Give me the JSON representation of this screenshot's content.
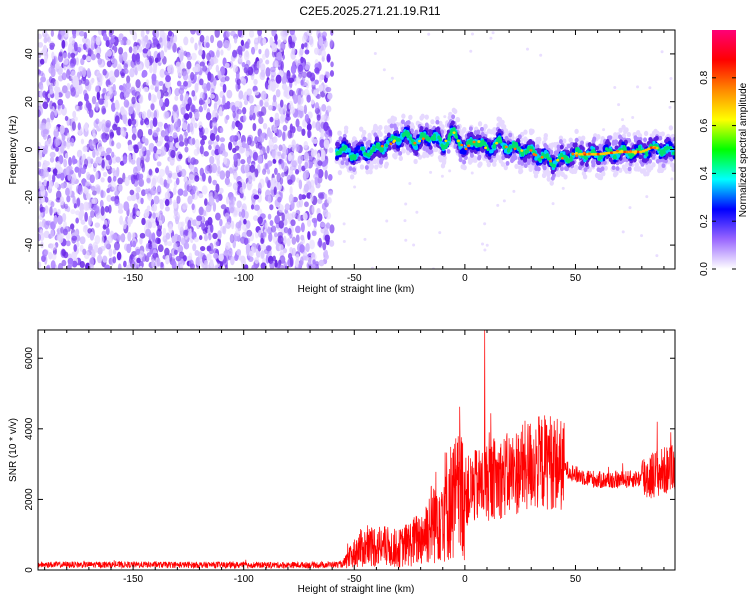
{
  "title": "C2E5.2025.271.21.19.R11",
  "chart_data": [
    {
      "type": "heatmap",
      "xlabel": "Height of straight line (km)",
      "ylabel": "Frequency (Hz)",
      "xlim": [
        -193,
        95
      ],
      "ylim": [
        -50,
        50
      ],
      "x_ticks": [
        -150,
        -100,
        -50,
        0,
        50
      ],
      "y_ticks": [
        -40,
        -20,
        0,
        20,
        40
      ],
      "noise_region_x": [
        -193,
        -60
      ],
      "ridge": [
        {
          "x": -60,
          "y": 1
        },
        {
          "x": -50,
          "y": -2
        },
        {
          "x": -40,
          "y": 0
        },
        {
          "x": -35,
          "y": 2
        },
        {
          "x": -28,
          "y": 6
        },
        {
          "x": -22,
          "y": 3
        },
        {
          "x": -15,
          "y": 6
        },
        {
          "x": -10,
          "y": 2
        },
        {
          "x": -5,
          "y": 7
        },
        {
          "x": 0,
          "y": 0
        },
        {
          "x": 5,
          "y": 4
        },
        {
          "x": 10,
          "y": 0
        },
        {
          "x": 15,
          "y": 3
        },
        {
          "x": 20,
          "y": 1
        },
        {
          "x": 30,
          "y": -1
        },
        {
          "x": 40,
          "y": -5
        },
        {
          "x": 50,
          "y": -2
        },
        {
          "x": 60,
          "y": -2
        },
        {
          "x": 70,
          "y": -1
        },
        {
          "x": 80,
          "y": -1
        },
        {
          "x": 85,
          "y": 1
        },
        {
          "x": 90,
          "y": 0
        },
        {
          "x": 95,
          "y": -1
        }
      ],
      "colorbar": {
        "label": "Normalized spectral amplitude",
        "range": [
          0,
          1
        ],
        "ticks": [
          "0.0",
          "0.2",
          "0.4",
          "0.6",
          "0.8"
        ],
        "colors": [
          "#ffffff",
          "#9966ff",
          "#0000ff",
          "#00ffff",
          "#00ff00",
          "#ffff00",
          "#ff8800",
          "#ff0000",
          "#ff0077"
        ]
      }
    },
    {
      "type": "line",
      "xlabel": "Height of straight line (km)",
      "ylabel": "SNR (10 * v/v)",
      "xlim": [
        -193,
        95
      ],
      "ylim": [
        0,
        6800
      ],
      "x_ticks": [
        -150,
        -100,
        -50,
        0,
        50
      ],
      "y_ticks": [
        0,
        2000,
        4000,
        6000
      ],
      "color": "#ff0000",
      "envelope": [
        {
          "x": -193,
          "y": 150
        },
        {
          "x": -150,
          "y": 150
        },
        {
          "x": -100,
          "y": 140
        },
        {
          "x": -70,
          "y": 140
        },
        {
          "x": -55,
          "y": 160
        },
        {
          "x": -48,
          "y": 600
        },
        {
          "x": -40,
          "y": 700
        },
        {
          "x": -30,
          "y": 600
        },
        {
          "x": -20,
          "y": 900
        },
        {
          "x": -10,
          "y": 1800
        },
        {
          "x": 0,
          "y": 2200
        },
        {
          "x": 10,
          "y": 2500
        },
        {
          "x": 20,
          "y": 2700
        },
        {
          "x": 30,
          "y": 3000
        },
        {
          "x": 40,
          "y": 3100
        },
        {
          "x": 50,
          "y": 2700
        },
        {
          "x": 60,
          "y": 2550
        },
        {
          "x": 70,
          "y": 2550
        },
        {
          "x": 80,
          "y": 2600
        },
        {
          "x": 85,
          "y": 2700
        },
        {
          "x": 95,
          "y": 2900
        }
      ],
      "peaks": [
        {
          "x": 9,
          "y": 6800
        },
        {
          "x": 5,
          "y": 3400
        },
        {
          "x": 11,
          "y": 3900
        },
        {
          "x": 38,
          "y": 3800
        },
        {
          "x": 87,
          "y": 4200
        }
      ]
    }
  ]
}
